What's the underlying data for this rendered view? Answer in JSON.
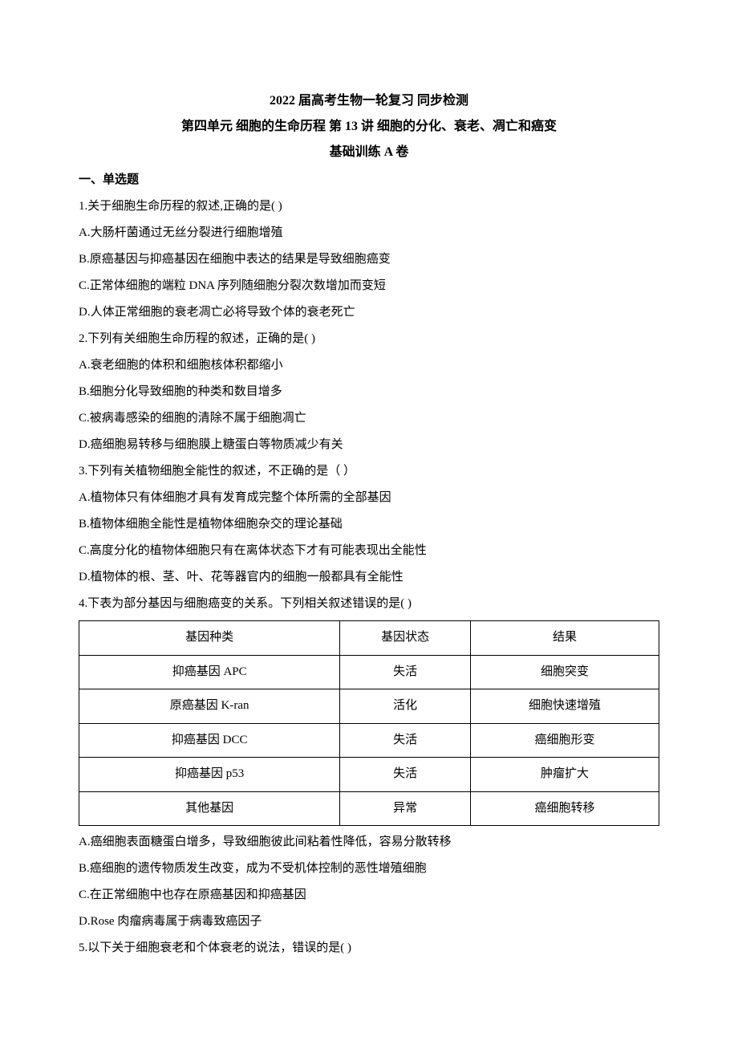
{
  "title": {
    "line1": "2022 届高考生物一轮复习 同步检测",
    "line2": "第四单元 细胞的生命历程 第 13 讲 细胞的分化、衰老、凋亡和癌变",
    "line3": "基础训练 A 卷"
  },
  "section1_heading": "一、单选题",
  "q1": {
    "text": "1.关于细胞生命历程的叙述,正确的是(   )",
    "A": "A.大肠杆菌通过无丝分裂进行细胞增殖",
    "B": "B.原癌基因与抑癌基因在细胞中表达的结果是导致细胞癌变",
    "C": "C.正常体细胞的端粒 DNA 序列随细胞分裂次数增加而变短",
    "D": "D.人体正常细胞的衰老凋亡必将导致个体的衰老死亡"
  },
  "q2": {
    "text": "2.下列有关细胞生命历程的叙述，正确的是(   )",
    "A": "A.衰老细胞的体积和细胞核体积都缩小",
    "B": "B.细胞分化导致细胞的种类和数目增多",
    "C": "C.被病毒感染的细胞的清除不属于细胞凋亡",
    "D": "D.癌细胞易转移与细胞膜上糖蛋白等物质减少有关"
  },
  "q3": {
    "text": "3.下列有关植物细胞全能性的叙述，不正确的是（   ）",
    "A": "A.植物体只有体细胞才具有发育成完整个体所需的全部基因",
    "B": "B.植物体细胞全能性是植物体细胞杂交的理论基础",
    "C": "C.高度分化的植物体细胞只有在离体状态下才有可能表现出全能性",
    "D": "D.植物体的根、茎、叶、花等器官内的细胞一般都具有全能性"
  },
  "q4": {
    "text": "4.下表为部分基因与细胞癌变的关系。下列相关叙述错误的是(   )",
    "table": {
      "columns": [
        "基因种类",
        "基因状态",
        "结果"
      ],
      "rows": [
        [
          "抑癌基因 APC",
          "失活",
          "细胞突变"
        ],
        [
          "原癌基因 K-ran",
          "活化",
          "细胞快速增殖"
        ],
        [
          "抑癌基因 DCC",
          "失活",
          "癌细胞形变"
        ],
        [
          "抑癌基因 p53",
          "失活",
          "肿瘤扩大"
        ],
        [
          "其他基因",
          "异常",
          "癌细胞转移"
        ]
      ]
    },
    "A": "A.癌细胞表面糖蛋白增多，导致细胞彼此间粘着性降低，容易分散转移",
    "B": "B.癌细胞的遗传物质发生改变，成为不受机体控制的恶性增殖细胞",
    "C": "C.在正常细胞中也存在原癌基因和抑癌基因",
    "D": "D.Rose 肉瘤病毒属于病毒致癌因子"
  },
  "q5": {
    "text": "5.以下关于细胞衰老和个体衰老的说法，错误的是(   )"
  }
}
